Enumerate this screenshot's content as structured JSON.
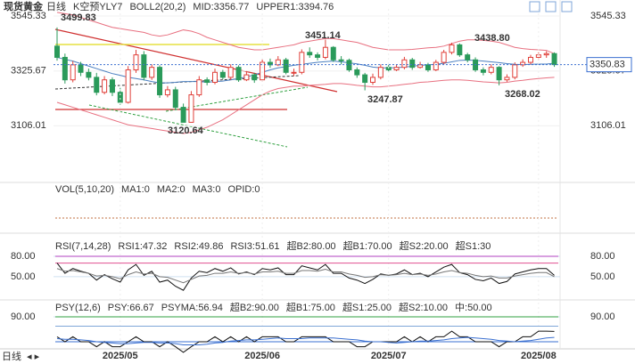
{
  "chart_data": [
    {
      "type": "candlestick",
      "title": "现货黄金",
      "period": "日线",
      "indicators": [
        {
          "text": "K空预YLY7",
          "color": "#222222"
        },
        {
          "text": "BOLL2(20,2)",
          "color": "#222222"
        },
        {
          "text": "MID:3356.77",
          "color": "#222222"
        },
        {
          "text": "UPPER1:3394.76",
          "color": "#7fa6d8"
        }
      ],
      "categories": [
        null,
        null,
        null,
        null,
        null,
        null,
        null,
        null,
        "2025/05",
        null,
        null,
        null,
        null,
        null,
        null,
        null,
        null,
        null,
        null,
        null,
        null,
        null,
        null,
        null,
        null,
        null,
        "2025/06",
        null,
        null,
        null,
        null,
        null,
        null,
        null,
        null,
        null,
        null,
        null,
        null,
        null,
        null,
        null,
        "2025/07",
        null,
        null,
        null,
        null,
        null,
        null,
        null,
        null,
        null,
        null,
        null,
        null,
        null,
        null,
        null,
        null,
        null,
        null,
        "2025/08",
        null,
        null
      ],
      "open": [
        3425,
        3380,
        3290,
        3350,
        3320,
        3300,
        3240,
        3290,
        3240,
        3200,
        3330,
        3390,
        3300,
        3340,
        3230,
        3250,
        3180,
        3120,
        3230,
        3290,
        3280,
        3320,
        3300,
        3340,
        3290,
        3310,
        3290,
        3360,
        3350,
        3370,
        3320,
        3320,
        3400,
        3390,
        3380,
        3420,
        3370,
        3368,
        3330,
        3310,
        3280,
        3300,
        3340,
        3330,
        3340,
        3370,
        3340,
        3350,
        3330,
        3360,
        3400,
        3430,
        3390,
        3370,
        3330,
        3320,
        3340,
        3290,
        3300,
        3350,
        3360,
        3380,
        3390,
        3395
      ],
      "high": [
        3499.83,
        3395,
        3365,
        3362,
        3335,
        3318,
        3305,
        3300,
        3258,
        3345,
        3410,
        3405,
        3352,
        3348,
        3265,
        3262,
        3195,
        3245,
        3305,
        3300,
        3335,
        3330,
        3352,
        3348,
        3325,
        3318,
        3372,
        3375,
        3385,
        3378,
        3335,
        3412,
        3420,
        3400,
        3451.14,
        3425,
        3385,
        3375,
        3340,
        3318,
        3315,
        3352,
        3350,
        3352,
        3382,
        3378,
        3362,
        3358,
        3370,
        3410,
        3438.8,
        3436,
        3398,
        3380,
        3340,
        3352,
        3345,
        3312,
        3360,
        3372,
        3390,
        3400,
        3405,
        3400
      ],
      "low": [
        3367,
        3275,
        3280,
        3305,
        3288,
        3228,
        3232,
        3225,
        3190,
        3195,
        3318,
        3288,
        3290,
        3218,
        3220,
        3170,
        3120.64,
        3125,
        3222,
        3268,
        3272,
        3292,
        3290,
        3282,
        3285,
        3278,
        3282,
        3338,
        3345,
        3312,
        3305,
        3312,
        3378,
        3368,
        3372,
        3362,
        3352,
        3322,
        3298,
        3247.87,
        3270,
        3292,
        3322,
        3325,
        3332,
        3330,
        3335,
        3322,
        3325,
        3352,
        3392,
        3382,
        3360,
        3322,
        3308,
        3312,
        3268.02,
        3282,
        3292,
        3342,
        3352,
        3370,
        3378,
        3342
      ],
      "close": [
        3380,
        3290,
        3350,
        3320,
        3300,
        3240,
        3290,
        3240,
        3200,
        3330,
        3390,
        3300,
        3340,
        3230,
        3250,
        3180,
        3120,
        3230,
        3290,
        3280,
        3320,
        3300,
        3340,
        3290,
        3310,
        3290,
        3360,
        3350,
        3370,
        3320,
        3320,
        3400,
        3390,
        3380,
        3420,
        3370,
        3368,
        3330,
        3310,
        3280,
        3300,
        3340,
        3330,
        3340,
        3370,
        3340,
        3350,
        3330,
        3360,
        3400,
        3430,
        3390,
        3370,
        3330,
        3320,
        3340,
        3290,
        3300,
        3350,
        3360,
        3380,
        3390,
        3395,
        3350.83
      ],
      "up_color": "#e0403a",
      "down_color": "#2a9a5a",
      "series": [
        {
          "color": "#e87080",
          "values": [
            3560,
            3555,
            3550,
            3540,
            3530,
            3520,
            3510,
            3500,
            3495,
            3490,
            3485,
            3480,
            3470,
            3465,
            3470,
            3480,
            3490,
            3485,
            3475,
            3460,
            3450,
            3440,
            3430,
            3420,
            3415,
            3410,
            3410,
            3415,
            3420,
            3425,
            3430,
            3440,
            3445,
            3450,
            3455,
            3455,
            3450,
            3445,
            3440,
            3430,
            3420,
            3415,
            3410,
            3410,
            3410,
            3412,
            3415,
            3418,
            3420,
            3425,
            3435,
            3445,
            3450,
            3450,
            3448,
            3445,
            3440,
            3430,
            3420,
            3415,
            3412,
            3410,
            3408,
            3394.76
          ]
        },
        {
          "color": "#4a7fc0",
          "values": [
            3380,
            3372,
            3365,
            3355,
            3345,
            3335,
            3325,
            3315,
            3308,
            3300,
            3295,
            3290,
            3283,
            3278,
            3278,
            3280,
            3283,
            3283,
            3283,
            3280,
            3283,
            3285,
            3290,
            3295,
            3302,
            3310,
            3320,
            3330,
            3338,
            3343,
            3348,
            3352,
            3356,
            3360,
            3363,
            3365,
            3362,
            3358,
            3354,
            3348,
            3341,
            3338,
            3338,
            3339,
            3341,
            3344,
            3348,
            3350,
            3352,
            3356,
            3362,
            3368,
            3369,
            3368,
            3365,
            3362,
            3359,
            3355,
            3352,
            3351,
            3352,
            3353,
            3353,
            3356.77
          ]
        },
        {
          "color": "#e87080",
          "values": [
            3200,
            3190,
            3180,
            3170,
            3160,
            3150,
            3140,
            3130,
            3120,
            3110,
            3105,
            3100,
            3095,
            3090,
            3085,
            3080,
            3075,
            3080,
            3090,
            3100,
            3115,
            3130,
            3150,
            3170,
            3190,
            3210,
            3230,
            3245,
            3255,
            3260,
            3265,
            3265,
            3268,
            3270,
            3272,
            3275,
            3275,
            3272,
            3268,
            3265,
            3262,
            3262,
            3265,
            3268,
            3272,
            3275,
            3280,
            3282,
            3285,
            3288,
            3290,
            3290,
            3288,
            3285,
            3282,
            3280,
            3278,
            3280,
            3285,
            3288,
            3292,
            3295,
            3298,
            3300
          ]
        }
      ],
      "annotations": [
        "3499.83",
        "3451.14",
        "3438.80",
        "3247.87",
        "3268.02",
        "3120.64"
      ],
      "ylim": [
        2897,
        3574
      ],
      "yticks": [
        3106.01,
        3325.67,
        3545.33
      ]
    },
    {
      "type": "volume",
      "indicators": [
        {
          "text": "VOL(5,10,20)",
          "color": "#222222"
        },
        {
          "text": "MA1:0",
          "color": "#3a6fd0"
        },
        {
          "text": "MA2:0",
          "color": "#c030c0"
        },
        {
          "text": "MA3:0",
          "color": "#e08020"
        },
        {
          "text": "OPID:0",
          "color": "#999999"
        }
      ]
    },
    {
      "type": "line",
      "indicators": [
        {
          "text": "RSI(7,14,28)",
          "color": "#222222"
        },
        {
          "text": "RSI1:47.32",
          "color": "#222222"
        },
        {
          "text": "RSI2:49.86",
          "color": "#3a6fd0"
        },
        {
          "text": "RSI3:51.61",
          "color": "#c030c0"
        },
        {
          "text": "超B2:80.00",
          "color": "#e08080"
        },
        {
          "text": "超B1:70.00",
          "color": "#e04070"
        },
        {
          "text": "超S2:20.00",
          "color": "#e04070"
        },
        {
          "text": "超S1:30",
          "color": "#e04070"
        }
      ],
      "series": [
        {
          "color": "#111111",
          "values": [
            70,
            55,
            62,
            58,
            55,
            45,
            53,
            47,
            42,
            60,
            68,
            52,
            58,
            42,
            45,
            36,
            30,
            48,
            58,
            56,
            62,
            58,
            63,
            54,
            57,
            53,
            62,
            60,
            63,
            53,
            53,
            66,
            63,
            60,
            68,
            55,
            55,
            48,
            45,
            40,
            46,
            54,
            52,
            54,
            60,
            53,
            55,
            50,
            57,
            64,
            68,
            56,
            53,
            46,
            44,
            48,
            40,
            43,
            54,
            57,
            60,
            62,
            62,
            52
          ]
        },
        {
          "color": "#777777",
          "values": [
            62,
            58,
            59,
            57,
            55,
            51,
            52,
            50,
            47,
            53,
            57,
            54,
            55,
            50,
            49,
            45,
            41,
            46,
            51,
            52,
            55,
            55,
            57,
            55,
            56,
            54,
            57,
            57,
            58,
            55,
            55,
            59,
            59,
            58,
            61,
            57,
            57,
            54,
            52,
            49,
            50,
            53,
            52,
            53,
            55,
            53,
            54,
            52,
            54,
            57,
            59,
            56,
            55,
            52,
            50,
            51,
            48,
            48,
            51,
            53,
            55,
            56,
            56,
            50
          ]
        }
      ],
      "ref_lines": [
        {
          "value": 80,
          "color": "#b040c0"
        },
        {
          "value": 70,
          "color": "#e05090"
        }
      ],
      "ylim": [
        25,
        103.5
      ],
      "yticks": [
        {
          "value": 50,
          "label": "50.00"
        },
        {
          "value": 80,
          "label": "80.00"
        }
      ]
    },
    {
      "type": "line",
      "indicators": [
        {
          "text": "PSY(12,6)",
          "color": "#222222"
        },
        {
          "text": "PSY:66.67",
          "color": "#222222"
        },
        {
          "text": "PSYMA:56.94",
          "color": "#3a6fd0"
        },
        {
          "text": "超B2:90.00",
          "color": "#30a040"
        },
        {
          "text": "超B1:75.00",
          "color": "#7fa6d8"
        },
        {
          "text": "超S1:25.00",
          "color": "#7fa6d8"
        },
        {
          "text": "超S2:10.00",
          "color": "#30a040"
        },
        {
          "text": "中:50.00",
          "color": "#3a6fd0"
        }
      ],
      "series": [
        {
          "color": "#111111",
          "values": [
            58,
            50,
            58,
            50,
            50,
            42,
            50,
            42,
            42,
            50,
            58,
            50,
            50,
            42,
            50,
            42,
            33,
            42,
            50,
            50,
            58,
            50,
            58,
            50,
            58,
            50,
            58,
            58,
            58,
            50,
            50,
            58,
            58,
            58,
            58,
            50,
            50,
            50,
            42,
            42,
            50,
            50,
            50,
            50,
            58,
            50,
            58,
            50,
            58,
            58,
            67,
            58,
            58,
            50,
            50,
            50,
            42,
            50,
            50,
            58,
            58,
            67,
            67,
            66.67
          ]
        },
        {
          "color": "#3a6fd0",
          "values": [
            55,
            54,
            54,
            53,
            52,
            50,
            49,
            48,
            47,
            47,
            48,
            49,
            49,
            48,
            48,
            47,
            45,
            45,
            45,
            46,
            48,
            49,
            51,
            52,
            53,
            53,
            54,
            55,
            56,
            55,
            55,
            55,
            56,
            56,
            56,
            56,
            55,
            54,
            53,
            51,
            50,
            50,
            49,
            48,
            49,
            50,
            51,
            51,
            52,
            53,
            55,
            56,
            57,
            56,
            55,
            54,
            52,
            51,
            50,
            51,
            52,
            54,
            56,
            56.94
          ]
        }
      ],
      "ref_lines": [
        {
          "value": 90,
          "color": "#30a040"
        },
        {
          "value": 75,
          "color": "#7fa6d8"
        },
        {
          "value": 50,
          "color": "#3a6fd0"
        }
      ],
      "ylim": [
        30,
        105.7
      ],
      "yticks": [
        {
          "value": 90,
          "label": "90.00"
        }
      ]
    }
  ]
}
